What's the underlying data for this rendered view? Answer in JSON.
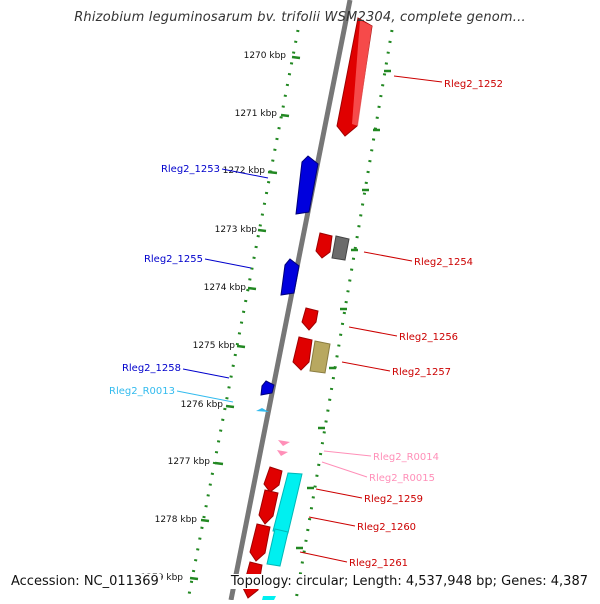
{
  "title": "Rhizobium leguminosarum bv. trifolii WSM2304, complete genom...",
  "accession": "Accession: NC_011369",
  "summary": "Topology: circular; Length: 4,537,948 bp; Genes: 4,387",
  "colors": {
    "backbone": "#777777",
    "tick": "#228822",
    "cds_forward": "#e00000",
    "cds_reverse": "#0000dd",
    "rna": "#ff8fb8",
    "trna": "#33bbee",
    "pseudogene": "#6b6b6b",
    "misc": "#b8a860",
    "cyan_feature": "#00f0f0"
  },
  "ruler": {
    "ticks": [
      "1270 kbp",
      "1271 kbp",
      "1272 kbp",
      "1273 kbp",
      "1274 kbp",
      "1275 kbp",
      "1276 kbp",
      "1277 kbp",
      "1278 kbp",
      "1279 kbp"
    ]
  },
  "gene_labels": {
    "Rleg2_1252": "Rleg2_1252",
    "Rleg2_1253": "Rleg2_1253",
    "Rleg2_1254": "Rleg2_1254",
    "Rleg2_1255": "Rleg2_1255",
    "Rleg2_1256": "Rleg2_1256",
    "Rleg2_1257": "Rleg2_1257",
    "Rleg2_1258": "Rleg2_1258",
    "Rleg2_R0013": "Rleg2_R0013",
    "Rleg2_R0014": "Rleg2_R0014",
    "Rleg2_R0015": "Rleg2_R0015",
    "Rleg2_1259": "Rleg2_1259",
    "Rleg2_1260": "Rleg2_1260",
    "Rleg2_1261": "Rleg2_1261"
  }
}
